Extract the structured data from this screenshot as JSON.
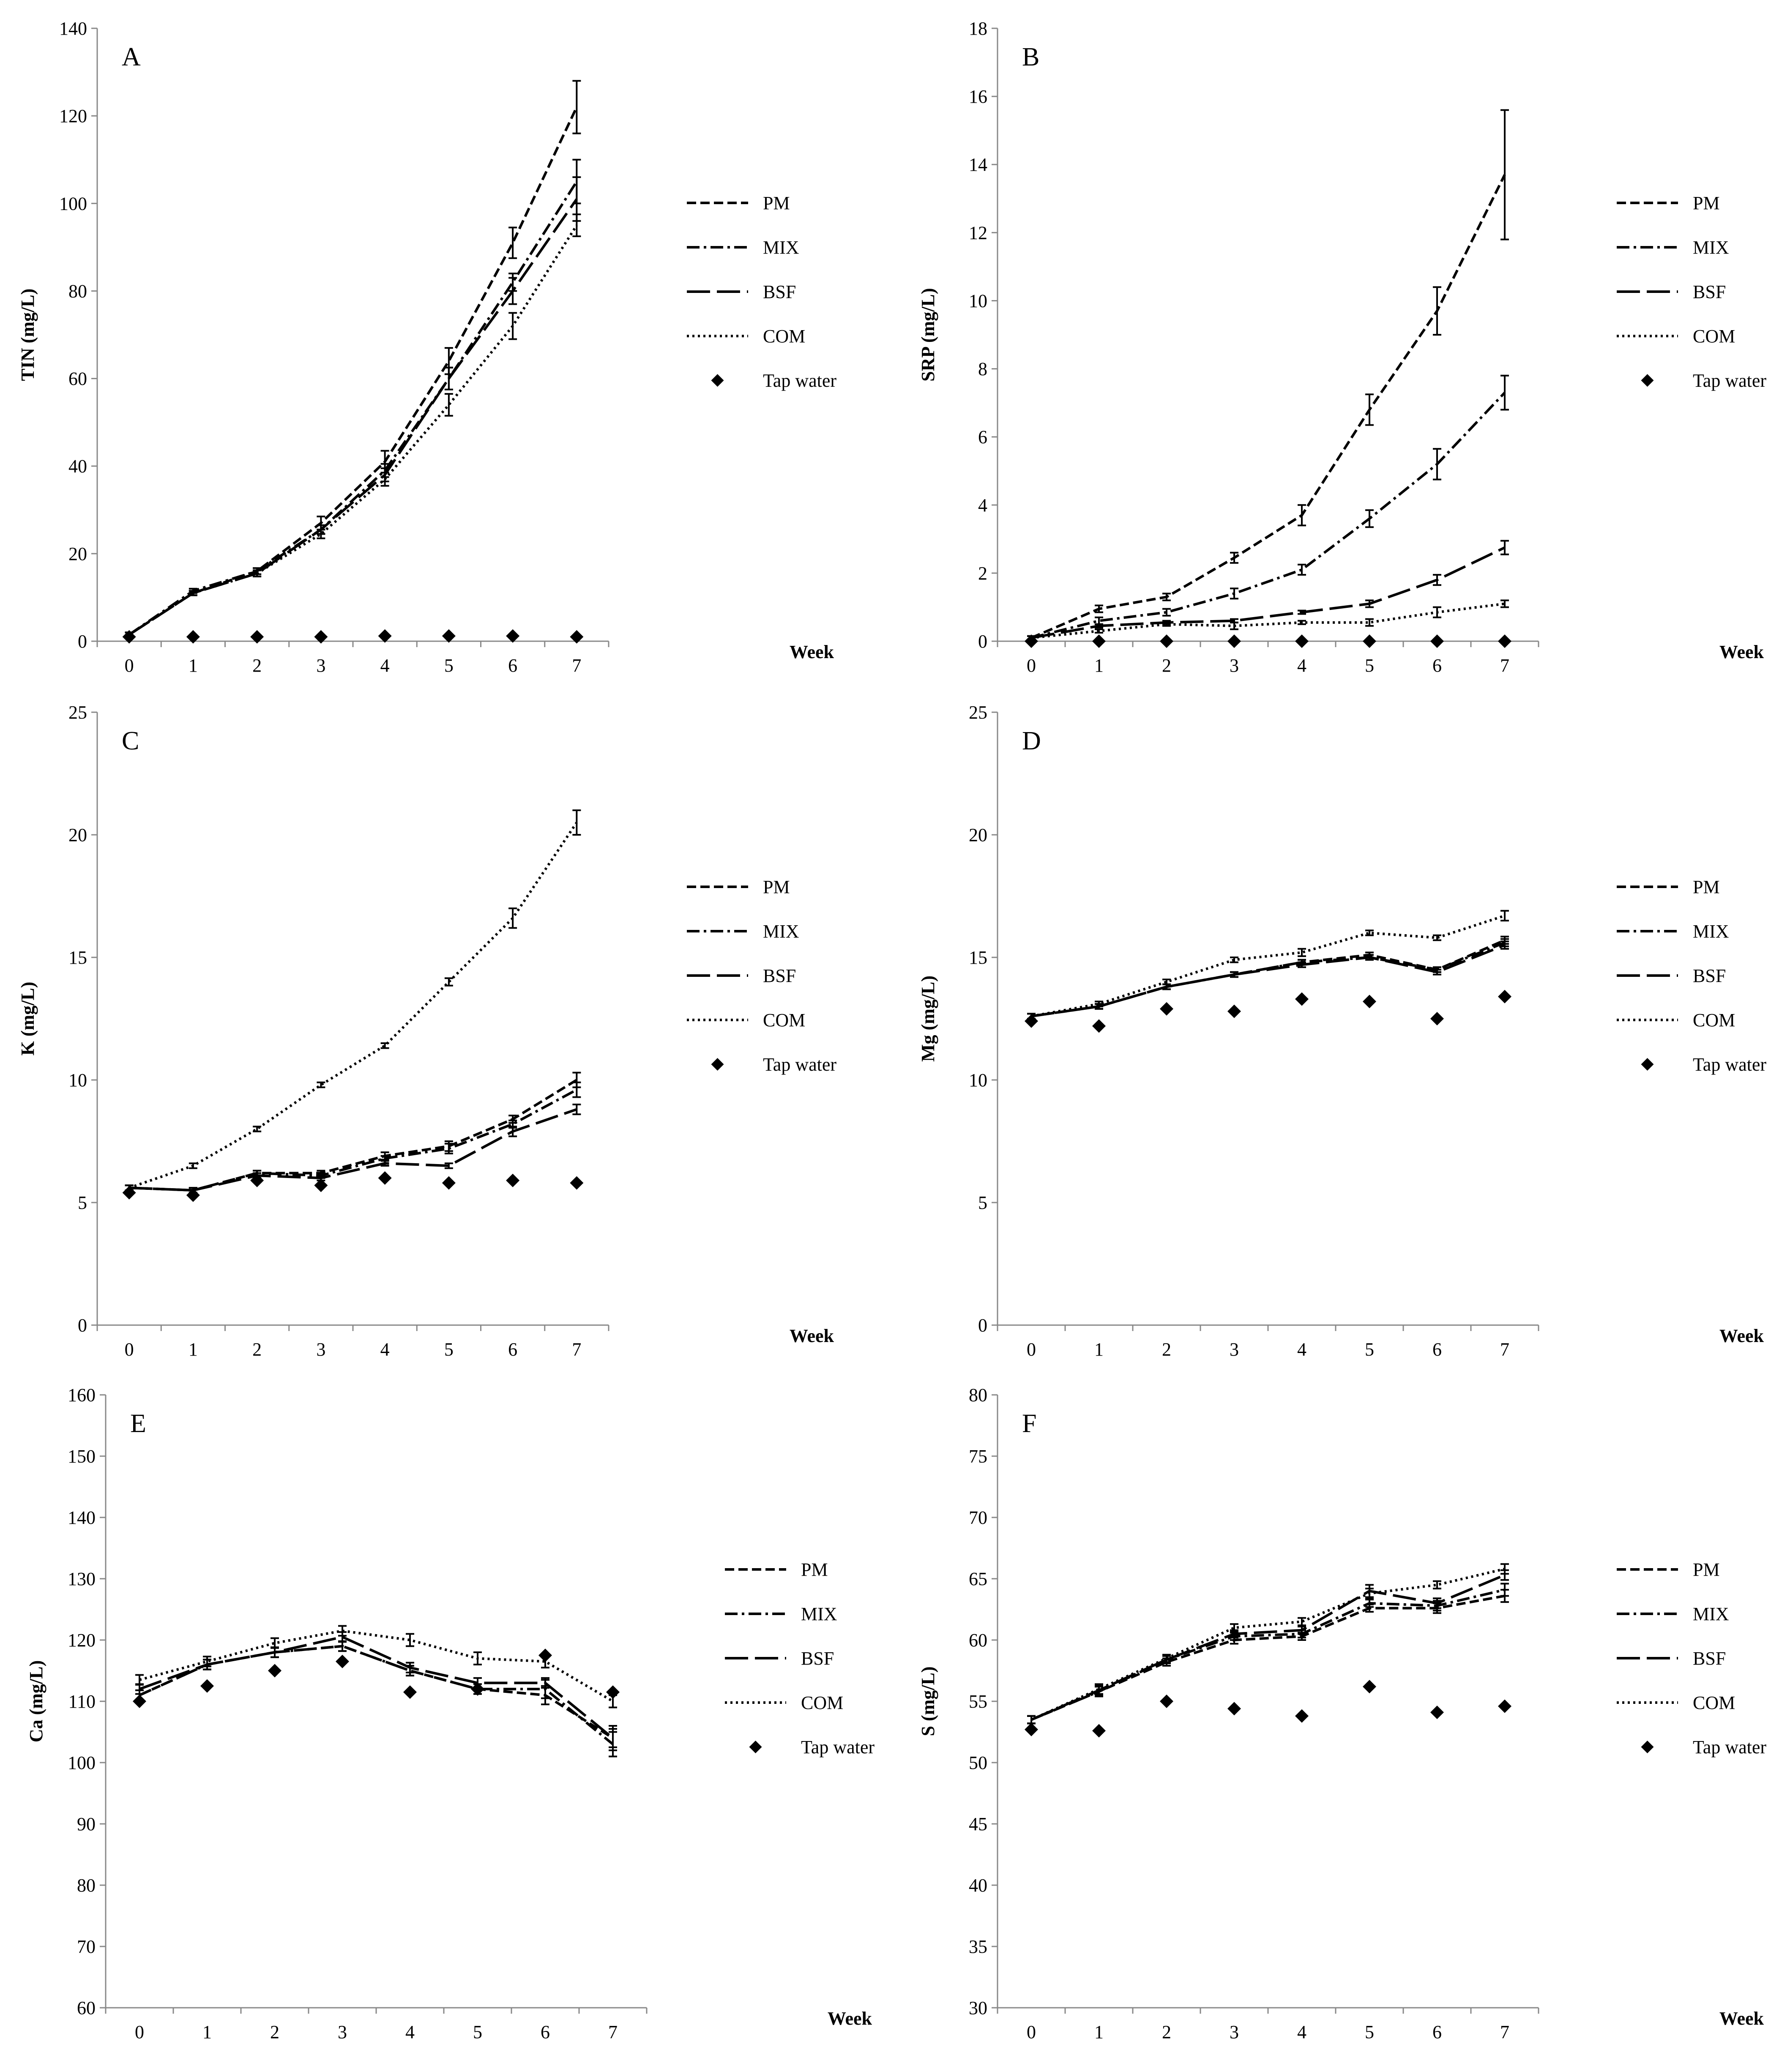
{
  "figure": {
    "x_axis_title": "Week"
  },
  "legend": {
    "entries": [
      {
        "name": "PM",
        "style": "dashed"
      },
      {
        "name": "MIX",
        "style": "dash-dot"
      },
      {
        "name": "BSF",
        "style": "long-dash"
      },
      {
        "name": "COM",
        "style": "dotted"
      },
      {
        "name": "Tap water",
        "style": "marker"
      }
    ]
  },
  "colors": {
    "line": "#000000",
    "background": "#ffffff"
  },
  "chart_data": [
    {
      "type": "line",
      "label": "A",
      "ylabel": "TIN (mg/L)",
      "xlabel": "Week",
      "x": [
        0,
        1,
        2,
        3,
        4,
        5,
        6,
        7
      ],
      "ylim": [
        0,
        140
      ],
      "yticks": [
        0,
        20,
        40,
        60,
        80,
        100,
        120,
        140
      ],
      "series": [
        {
          "name": "PM",
          "values": [
            1.5,
            11,
            16,
            27,
            41,
            64,
            91,
            122
          ],
          "err": [
            0.5,
            0.5,
            0.7,
            1.5,
            2.5,
            3,
            3.5,
            6
          ]
        },
        {
          "name": "MIX",
          "values": [
            1.5,
            11.5,
            16,
            25.5,
            39,
            60,
            82,
            105
          ],
          "err": [
            0.5,
            0.5,
            0.7,
            1,
            1.5,
            2.5,
            2,
            5
          ]
        },
        {
          "name": "BSF",
          "values": [
            1.5,
            11,
            15.5,
            25.5,
            38,
            60,
            80,
            101
          ],
          "err": [
            0.5,
            0.5,
            0.7,
            1,
            1.5,
            2.5,
            3,
            5
          ]
        },
        {
          "name": "COM",
          "values": [
            1.5,
            11,
            15.5,
            24.5,
            37,
            54,
            72,
            95
          ],
          "err": [
            0.5,
            0.5,
            0.7,
            1,
            1.5,
            2.5,
            3,
            2.5
          ]
        },
        {
          "name": "Tap water",
          "values": [
            1,
            1,
            1,
            1,
            1.2,
            1.2,
            1.2,
            1
          ]
        }
      ]
    },
    {
      "type": "line",
      "label": "B",
      "ylabel": "SRP (mg/L)",
      "xlabel": "Week",
      "x": [
        0,
        1,
        2,
        3,
        4,
        5,
        6,
        7
      ],
      "ylim": [
        0,
        18
      ],
      "yticks": [
        0,
        2,
        4,
        6,
        8,
        10,
        12,
        14,
        16,
        18
      ],
      "series": [
        {
          "name": "PM",
          "values": [
            0.1,
            0.95,
            1.3,
            2.45,
            3.7,
            6.8,
            9.7,
            13.7
          ],
          "err": [
            0.05,
            0.1,
            0.1,
            0.15,
            0.3,
            0.45,
            0.7,
            1.9
          ]
        },
        {
          "name": "MIX",
          "values": [
            0.1,
            0.6,
            0.85,
            1.4,
            2.1,
            3.6,
            5.2,
            7.3
          ],
          "err": [
            0.05,
            0.1,
            0.1,
            0.15,
            0.15,
            0.25,
            0.45,
            0.5
          ]
        },
        {
          "name": "BSF",
          "values": [
            0.1,
            0.45,
            0.55,
            0.6,
            0.85,
            1.1,
            1.8,
            2.75
          ],
          "err": [
            0.05,
            0.05,
            0.05,
            0.05,
            0.05,
            0.1,
            0.15,
            0.2
          ]
        },
        {
          "name": "COM",
          "values": [
            0.1,
            0.3,
            0.5,
            0.45,
            0.55,
            0.55,
            0.85,
            1.1
          ],
          "err": [
            0.05,
            0.05,
            0.05,
            0.1,
            0.05,
            0.1,
            0.15,
            0.1
          ]
        },
        {
          "name": "Tap water",
          "values": [
            0,
            0,
            0,
            0,
            0,
            0,
            0,
            0
          ]
        }
      ]
    },
    {
      "type": "line",
      "label": "C",
      "ylabel": "K (mg/L)",
      "xlabel": "Week",
      "x": [
        0,
        1,
        2,
        3,
        4,
        5,
        6,
        7
      ],
      "ylim": [
        0,
        25
      ],
      "yticks": [
        0,
        5,
        10,
        15,
        20,
        25
      ],
      "series": [
        {
          "name": "PM",
          "values": [
            5.6,
            5.5,
            6.2,
            6.2,
            6.9,
            7.3,
            8.4,
            10
          ],
          "err": [
            0.1,
            0.1,
            0.1,
            0.1,
            0.15,
            0.2,
            0.15,
            0.3
          ]
        },
        {
          "name": "MIX",
          "values": [
            5.6,
            5.5,
            6.2,
            6.1,
            6.8,
            7.2,
            8.2,
            9.6
          ],
          "err": [
            0.1,
            0.1,
            0.1,
            0.1,
            0.1,
            0.2,
            0.15,
            0.3
          ]
        },
        {
          "name": "BSF",
          "values": [
            5.6,
            5.5,
            6.1,
            6.0,
            6.6,
            6.5,
            7.9,
            8.8
          ],
          "err": [
            0.1,
            0.1,
            0.1,
            0.1,
            0.1,
            0.1,
            0.2,
            0.2
          ]
        },
        {
          "name": "COM",
          "values": [
            5.6,
            6.5,
            8.0,
            9.8,
            11.4,
            14.0,
            16.6,
            20.5
          ],
          "err": [
            0.1,
            0.1,
            0.1,
            0.1,
            0.1,
            0.15,
            0.4,
            0.5
          ]
        },
        {
          "name": "Tap water",
          "values": [
            5.4,
            5.3,
            5.9,
            5.7,
            6.0,
            5.8,
            5.9,
            5.8
          ]
        }
      ]
    },
    {
      "type": "line",
      "label": "D",
      "ylabel": "Mg (mg/L)",
      "xlabel": "Week",
      "x": [
        0,
        1,
        2,
        3,
        4,
        5,
        6,
        7
      ],
      "ylim": [
        0,
        25
      ],
      "yticks": [
        0,
        5,
        10,
        15,
        20,
        25
      ],
      "series": [
        {
          "name": "PM",
          "values": [
            12.6,
            13.0,
            13.8,
            14.3,
            14.8,
            15.1,
            14.5,
            15.7
          ],
          "err": [
            0.1,
            0.1,
            0.1,
            0.1,
            0.1,
            0.1,
            0.1,
            0.15
          ]
        },
        {
          "name": "MIX",
          "values": [
            12.6,
            13.0,
            13.8,
            14.3,
            14.8,
            15.0,
            14.5,
            15.6
          ],
          "err": [
            0.1,
            0.1,
            0.1,
            0.1,
            0.1,
            0.1,
            0.1,
            0.15
          ]
        },
        {
          "name": "BSF",
          "values": [
            12.6,
            13.0,
            13.8,
            14.3,
            14.7,
            15.0,
            14.4,
            15.5
          ],
          "err": [
            0.1,
            0.1,
            0.1,
            0.1,
            0.1,
            0.1,
            0.1,
            0.15
          ]
        },
        {
          "name": "COM",
          "values": [
            12.6,
            13.1,
            14.0,
            14.9,
            15.2,
            16.0,
            15.8,
            16.7
          ],
          "err": [
            0.1,
            0.1,
            0.1,
            0.1,
            0.15,
            0.1,
            0.1,
            0.2
          ]
        },
        {
          "name": "Tap water",
          "values": [
            12.4,
            12.2,
            12.9,
            12.8,
            13.3,
            13.2,
            12.5,
            13.4
          ]
        }
      ]
    },
    {
      "type": "line",
      "label": "E",
      "ylabel": "Ca (mg/L)",
      "xlabel": "Week",
      "x": [
        0,
        1,
        2,
        3,
        4,
        5,
        6,
        7
      ],
      "ylim": [
        60,
        160
      ],
      "yticks": [
        60,
        70,
        80,
        90,
        100,
        110,
        120,
        130,
        140,
        150,
        160
      ],
      "series": [
        {
          "name": "PM",
          "values": [
            111,
            116,
            118,
            119,
            115,
            112,
            111,
            104
          ],
          "err": [
            0.8,
            0.8,
            0.8,
            0.8,
            0.8,
            0.8,
            1.5,
            2
          ]
        },
        {
          "name": "MIX",
          "values": [
            111,
            116,
            118,
            119,
            115,
            112,
            112,
            103
          ],
          "err": [
            0.8,
            0.8,
            0.8,
            0.8,
            0.8,
            0.8,
            1.5,
            2
          ]
        },
        {
          "name": "BSF",
          "values": [
            112,
            116,
            118,
            120.5,
            115.5,
            113,
            113,
            104
          ],
          "err": [
            0.8,
            0.8,
            0.8,
            0.8,
            0.8,
            0.8,
            0.8,
            1.5
          ]
        },
        {
          "name": "COM",
          "values": [
            113.5,
            116.5,
            119.5,
            121.5,
            120,
            117,
            116.5,
            110
          ],
          "err": [
            0.8,
            0.8,
            0.8,
            0.8,
            1,
            1,
            1,
            1
          ]
        },
        {
          "name": "Tap water",
          "values": [
            110,
            112.5,
            115,
            116.5,
            111.5,
            112,
            117.5,
            111.5
          ]
        }
      ]
    },
    {
      "type": "line",
      "label": "F",
      "ylabel": "S (mg/L)",
      "xlabel": "Week",
      "x": [
        0,
        1,
        2,
        3,
        4,
        5,
        6,
        7
      ],
      "ylim": [
        30,
        80
      ],
      "yticks": [
        30,
        35,
        40,
        45,
        50,
        55,
        60,
        65,
        70,
        75,
        80
      ],
      "series": [
        {
          "name": "PM",
          "values": [
            53.5,
            55.8,
            58.2,
            60.0,
            60.3,
            62.6,
            62.6,
            63.6
          ],
          "err": [
            0.3,
            0.4,
            0.3,
            0.3,
            0.3,
            0.3,
            0.4,
            0.5
          ]
        },
        {
          "name": "MIX",
          "values": [
            53.5,
            55.8,
            58.4,
            60.3,
            60.5,
            63.0,
            62.8,
            64.1
          ],
          "err": [
            0.3,
            0.4,
            0.3,
            0.3,
            0.3,
            0.3,
            0.4,
            0.5
          ]
        },
        {
          "name": "BSF",
          "values": [
            53.5,
            55.9,
            58.4,
            60.5,
            60.8,
            64.0,
            63.0,
            65.3
          ],
          "err": [
            0.3,
            0.4,
            0.3,
            0.3,
            0.3,
            0.5,
            0.4,
            0.4
          ]
        },
        {
          "name": "COM",
          "values": [
            53.5,
            56.0,
            58.5,
            61.0,
            61.5,
            63.8,
            64.5,
            65.8
          ],
          "err": [
            0.3,
            0.4,
            0.3,
            0.3,
            0.3,
            0.4,
            0.3,
            0.4
          ]
        },
        {
          "name": "Tap water",
          "values": [
            52.7,
            52.6,
            55.0,
            54.4,
            53.8,
            56.2,
            54.1,
            54.6
          ]
        }
      ]
    }
  ]
}
